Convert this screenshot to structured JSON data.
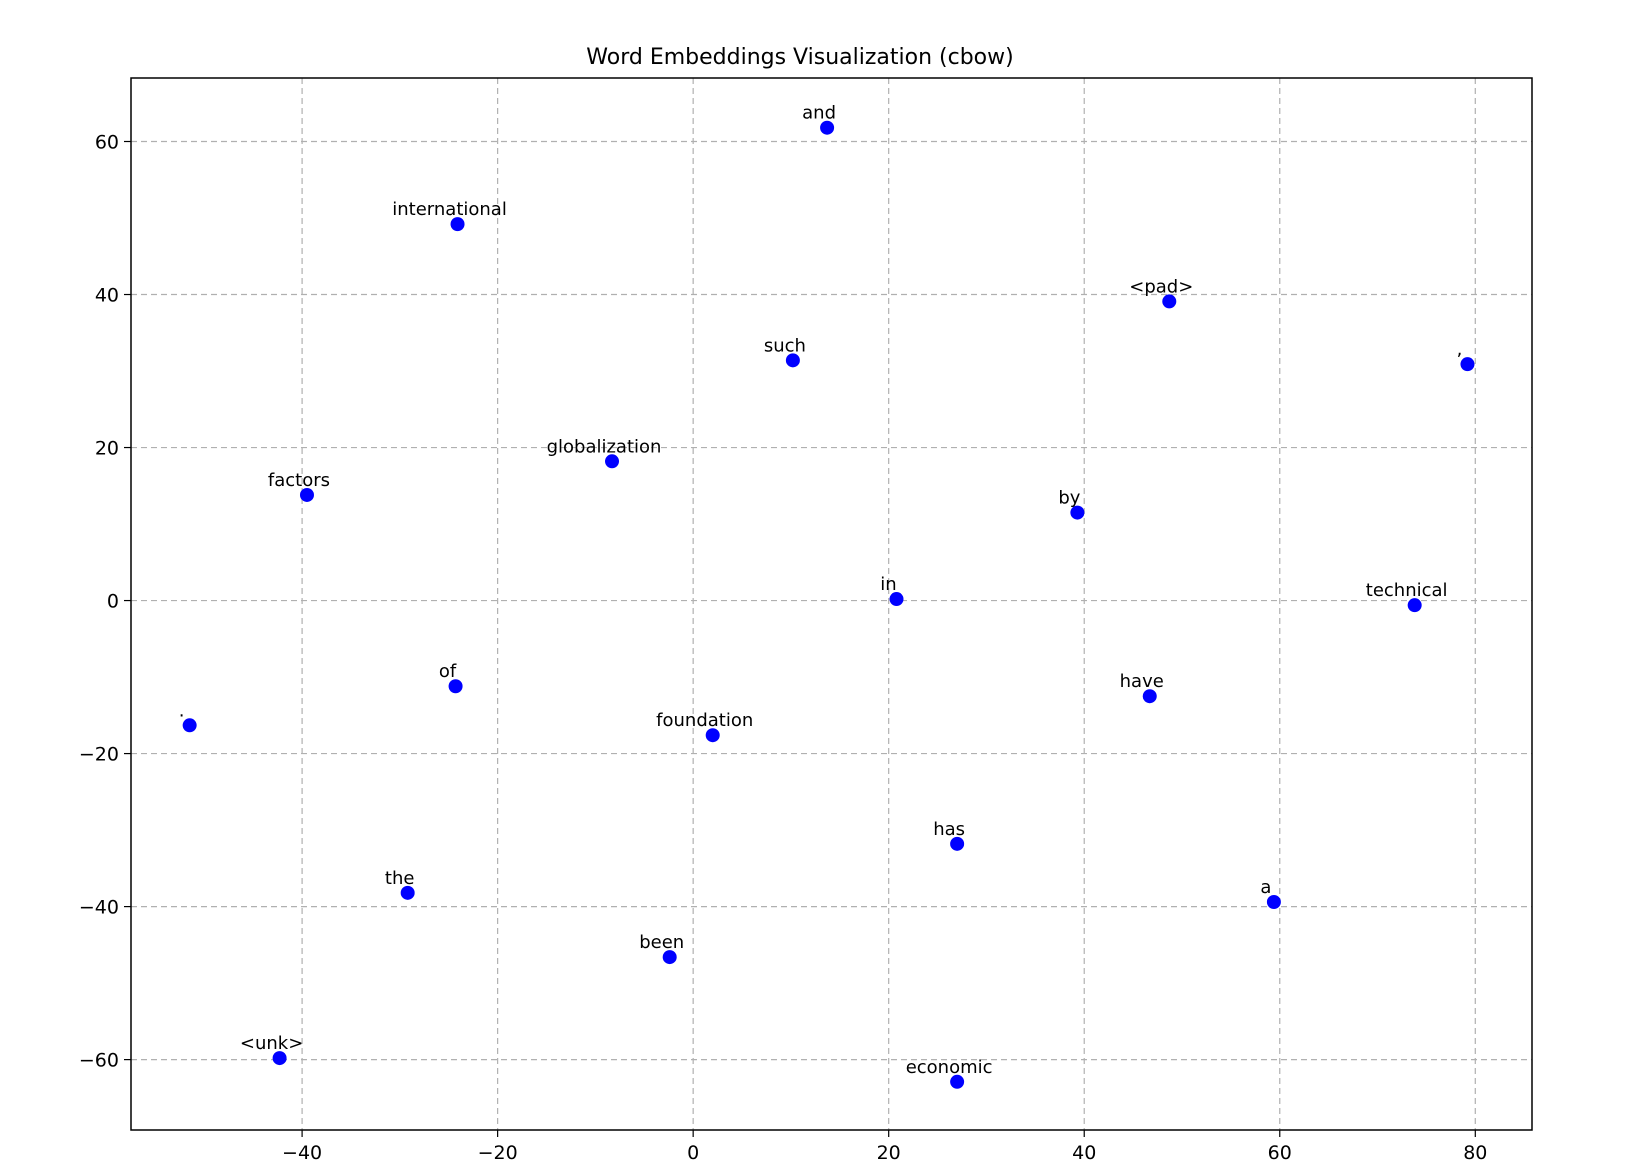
{
  "chart_data": {
    "type": "scatter",
    "title": "Word Embeddings Visualization (cbow)",
    "xlabel": "",
    "ylabel": "",
    "xlim": [
      -57.5,
      85.8
    ],
    "ylim": [
      -69.2,
      68.3
    ],
    "xticks": [
      -40,
      -20,
      0,
      20,
      40,
      60,
      80
    ],
    "yticks": [
      -60,
      -40,
      -20,
      0,
      20,
      40,
      60
    ],
    "xtick_labels": [
      "−40",
      "−20",
      "0",
      "20",
      "40",
      "60",
      "80"
    ],
    "ytick_labels": [
      "−60",
      "−40",
      "−20",
      "0",
      "20",
      "40",
      "60"
    ],
    "grid": true,
    "legend": "none",
    "marker_color": "#0000ff",
    "points": [
      {
        "label": "and",
        "x": 13.7,
        "y": 61.8
      },
      {
        "label": "international",
        "x": -24.1,
        "y": 49.2
      },
      {
        "label": "<pad>",
        "x": 48.7,
        "y": 39.1
      },
      {
        "label": "such",
        "x": 10.2,
        "y": 31.4
      },
      {
        "label": ",",
        "x": 79.2,
        "y": 30.9
      },
      {
        "label": "globalization",
        "x": -8.3,
        "y": 18.2
      },
      {
        "label": "factors",
        "x": -39.5,
        "y": 13.8
      },
      {
        "label": "by",
        "x": 39.3,
        "y": 11.5
      },
      {
        "label": "in",
        "x": 20.8,
        "y": 0.2
      },
      {
        "label": "technical",
        "x": 73.8,
        "y": -0.6
      },
      {
        "label": "of",
        "x": -24.3,
        "y": -11.2
      },
      {
        "label": "have",
        "x": 46.7,
        "y": -12.5
      },
      {
        "label": ".",
        "x": -51.5,
        "y": -16.3
      },
      {
        "label": "foundation",
        "x": 2.0,
        "y": -17.6
      },
      {
        "label": "has",
        "x": 27.0,
        "y": -31.8
      },
      {
        "label": "the",
        "x": -29.2,
        "y": -38.2
      },
      {
        "label": "a",
        "x": 59.4,
        "y": -39.4
      },
      {
        "label": "been",
        "x": -2.4,
        "y": -46.6
      },
      {
        "label": "<unk>",
        "x": -42.3,
        "y": -59.8
      },
      {
        "label": "economic",
        "x": 27.0,
        "y": -62.9
      }
    ]
  }
}
